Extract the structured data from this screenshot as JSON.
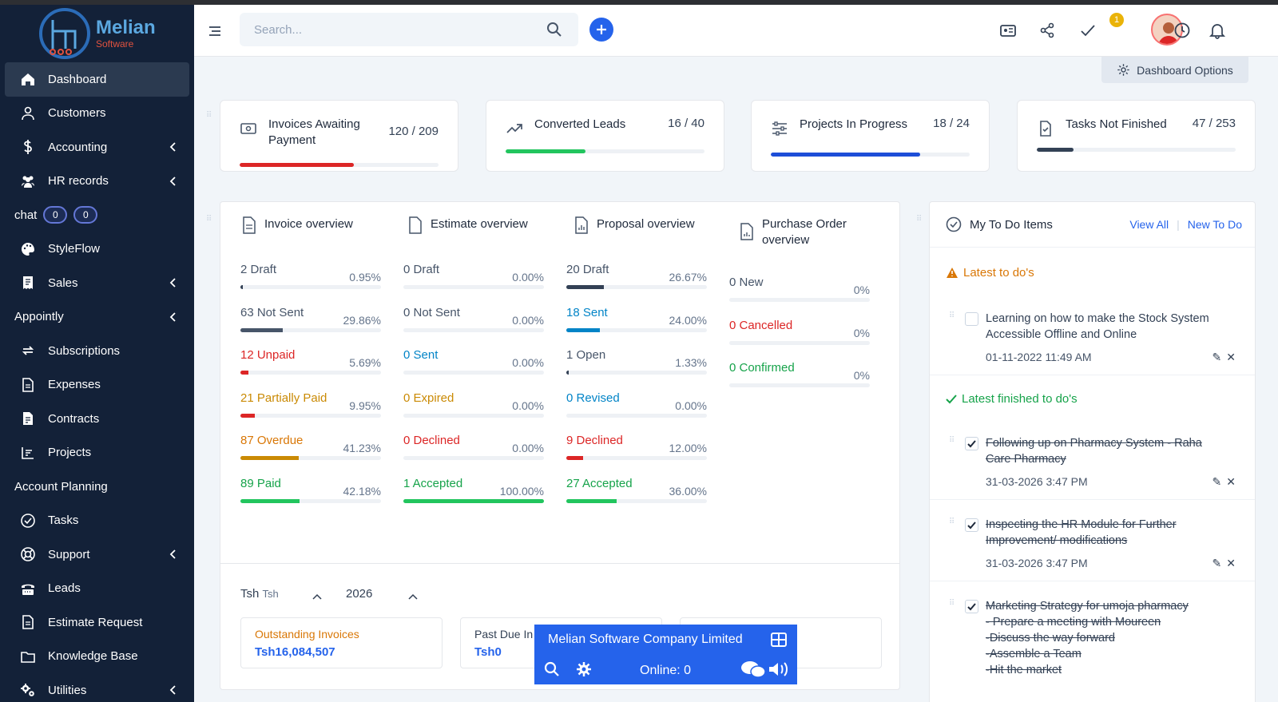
{
  "app": {
    "logo_name": "Melian",
    "logo_sub": "Software"
  },
  "sidebar": {
    "items": [
      {
        "label": "Dashboard",
        "icon": "home-icon"
      },
      {
        "label": "Customers",
        "icon": "user-icon"
      },
      {
        "label": "Accounting",
        "icon": "dollar-icon"
      },
      {
        "label": "HR records",
        "icon": "users-icon"
      },
      {
        "label": "chat",
        "icon": "",
        "badges": [
          "0",
          "0"
        ]
      },
      {
        "label": "StyleFlow",
        "icon": "palette-icon"
      },
      {
        "label": "Sales",
        "icon": "receipt-icon"
      },
      {
        "label": "Appointly",
        "icon": ""
      },
      {
        "label": "Subscriptions",
        "icon": "repeat-icon"
      },
      {
        "label": "Expenses",
        "icon": "file-icon"
      },
      {
        "label": "Contracts",
        "icon": "contract-icon"
      },
      {
        "label": "Projects",
        "icon": "chart-icon"
      },
      {
        "label": "Account Planning",
        "icon": ""
      },
      {
        "label": "Tasks",
        "icon": "check-circle-icon"
      },
      {
        "label": "Support",
        "icon": "lifebuoy-icon"
      },
      {
        "label": "Leads",
        "icon": "tty-icon"
      },
      {
        "label": "Estimate Request",
        "icon": "file-icon"
      },
      {
        "label": "Knowledge Base",
        "icon": "folder-icon"
      },
      {
        "label": "Utilities",
        "icon": "gears-icon"
      }
    ]
  },
  "header": {
    "search_placeholder": "Search...",
    "notification_count": "1",
    "dashboard_options": "Dashboard Options"
  },
  "stats": [
    {
      "title": "Invoices Awaiting Payment",
      "value": "120 / 209",
      "progress": 0.574,
      "color": "#dc2626"
    },
    {
      "title": "Converted Leads",
      "value": "16 / 40",
      "progress": 0.4,
      "color": "#22c55e"
    },
    {
      "title": "Projects In Progress",
      "value": "18 / 24",
      "progress": 0.75,
      "color": "#1d4ed8"
    },
    {
      "title": "Tasks Not Finished",
      "value": "47 / 253",
      "progress": 0.186,
      "color": "#334155"
    }
  ],
  "overview": {
    "invoice": {
      "title": "Invoice overview",
      "rows": [
        {
          "label": "2 Draft",
          "pct": "0.95%",
          "v": 0.0095,
          "color": "#334155",
          "cls": "c-dark"
        },
        {
          "label": "63 Not Sent",
          "pct": "29.86%",
          "v": 0.2986,
          "color": "#475569",
          "cls": "c-dark"
        },
        {
          "label": "12 Unpaid",
          "pct": "5.69%",
          "v": 0.0569,
          "color": "#dc2626",
          "cls": "c-red"
        },
        {
          "label": "21 Partially Paid",
          "pct": "9.95%",
          "v": 0.0995,
          "color": "#dc2626",
          "cls": "c-orange"
        },
        {
          "label": "87 Overdue",
          "pct": "41.23%",
          "v": 0.4123,
          "color": "#ca8a04",
          "cls": "c-amber"
        },
        {
          "label": "89 Paid",
          "pct": "42.18%",
          "v": 0.4218,
          "color": "#22c55e",
          "cls": "c-green"
        }
      ]
    },
    "estimate": {
      "title": "Estimate overview",
      "rows": [
        {
          "label": "0 Draft",
          "pct": "0.00%",
          "v": 0,
          "color": "#334155",
          "cls": "c-dark"
        },
        {
          "label": "0 Not Sent",
          "pct": "0.00%",
          "v": 0,
          "color": "#475569",
          "cls": "c-dark"
        },
        {
          "label": "0 Sent",
          "pct": "0.00%",
          "v": 0,
          "color": "#0284c7",
          "cls": "c-blue"
        },
        {
          "label": "0 Expired",
          "pct": "0.00%",
          "v": 0,
          "color": "#ca8a04",
          "cls": "c-orange"
        },
        {
          "label": "0 Declined",
          "pct": "0.00%",
          "v": 0,
          "color": "#dc2626",
          "cls": "c-red"
        },
        {
          "label": "1 Accepted",
          "pct": "100.00%",
          "v": 1.0,
          "color": "#22c55e",
          "cls": "c-green"
        }
      ]
    },
    "proposal": {
      "title": "Proposal overview",
      "rows": [
        {
          "label": "20 Draft",
          "pct": "26.67%",
          "v": 0.2667,
          "color": "#334155",
          "cls": "c-dark"
        },
        {
          "label": "18 Sent",
          "pct": "24.00%",
          "v": 0.24,
          "color": "#0284c7",
          "cls": "c-blue"
        },
        {
          "label": "1 Open",
          "pct": "1.33%",
          "v": 0.0133,
          "color": "#334155",
          "cls": "c-dark"
        },
        {
          "label": "0 Revised",
          "pct": "0.00%",
          "v": 0,
          "color": "#0284c7",
          "cls": "c-blue"
        },
        {
          "label": "9 Declined",
          "pct": "12.00%",
          "v": 0.12,
          "color": "#dc2626",
          "cls": "c-red"
        },
        {
          "label": "27 Accepted",
          "pct": "36.00%",
          "v": 0.36,
          "color": "#22c55e",
          "cls": "c-green"
        }
      ]
    },
    "purchase": {
      "title": "Purchase Order overview",
      "rows": [
        {
          "label": "0 New",
          "pct": "0%",
          "v": 0,
          "color": "#334155",
          "cls": "c-dark"
        },
        {
          "label": "0 Cancelled",
          "pct": "0%",
          "v": 0,
          "color": "#dc2626",
          "cls": "c-red"
        },
        {
          "label": "0 Confirmed",
          "pct": "0%",
          "v": 0,
          "color": "#22c55e",
          "cls": "c-green"
        }
      ]
    }
  },
  "finance": {
    "currency_label": "Tsh",
    "currency_sub": "Tsh",
    "year": "2026",
    "boxes": [
      {
        "label": "Outstanding Invoices",
        "value": "Tsh16,084,507"
      },
      {
        "label": "Past Due In",
        "value": "Tsh0"
      },
      {
        "label": "",
        "value": ""
      }
    ]
  },
  "todo": {
    "title": "My To Do Items",
    "view_all": "View All",
    "new_todo": "New To Do",
    "latest_title": "Latest to do's",
    "finished_title": "Latest finished to do's",
    "latest": [
      {
        "text": "Learning on how to make the Stock System Accessible Offline and Online",
        "date": "01-11-2022 11:49 AM"
      }
    ],
    "finished": [
      {
        "text": "Following up on Pharmacy System - Raha Care Pharmacy",
        "date": "31-03-2026 3:47 PM"
      },
      {
        "text": "Inspecting the HR Module for Further Improvement/ modifications",
        "date": "31-03-2026 3:47 PM"
      },
      {
        "text": "Marketing Strategy for umoja pharmacy",
        "lines": [
          "- Prepare a meeting with Moureen",
          "-Discuss the way forward",
          "-Assemble a Team",
          "-Hit the market"
        ]
      }
    ]
  },
  "chat_widget": {
    "title": "Melian Software Company Limited",
    "online": "Online: 0"
  }
}
